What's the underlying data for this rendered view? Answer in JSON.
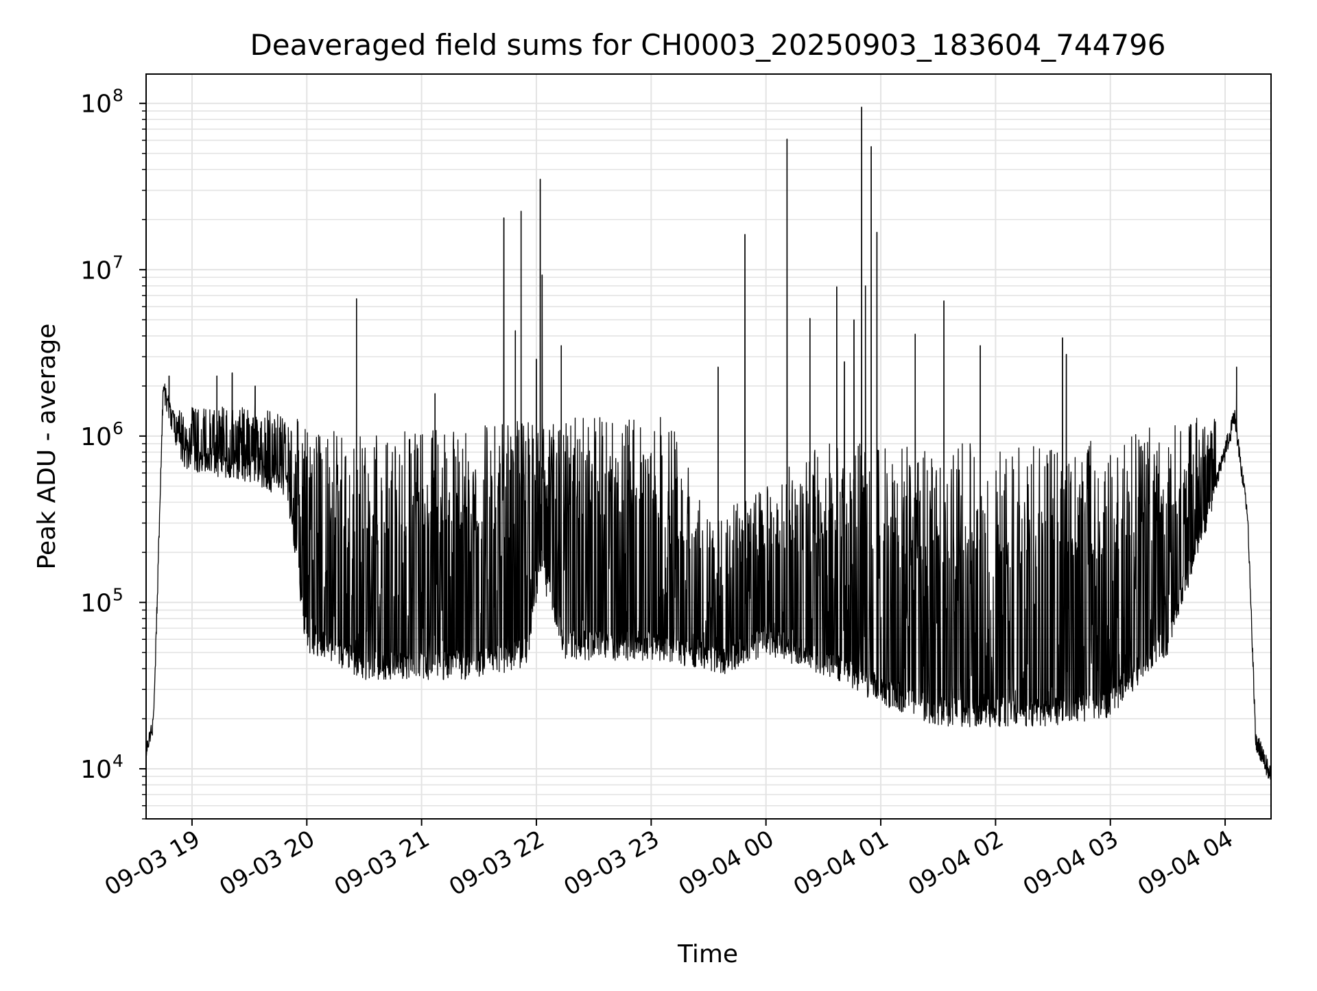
{
  "chart_data": {
    "type": "line",
    "title": "Deaveraged field sums for CH0003_20250903_183604_744796",
    "xlabel": "Time",
    "ylabel": "Peak ADU - average",
    "yscale": "log",
    "ylim": [
      5000,
      150000000
    ],
    "xlim": [
      "2025-09-03 18:36",
      "2025-09-04 04:24"
    ],
    "grid": true,
    "x_ticks": [
      "09-03 19",
      "09-03 20",
      "09-03 21",
      "09-03 22",
      "09-03 23",
      "09-04 00",
      "09-04 01",
      "09-04 02",
      "09-04 03",
      "09-04 04"
    ],
    "y_ticks": [
      {
        "base": "10",
        "exp": "4"
      },
      {
        "base": "10",
        "exp": "5"
      },
      {
        "base": "10",
        "exp": "6"
      },
      {
        "base": "10",
        "exp": "7"
      },
      {
        "base": "10",
        "exp": "8"
      }
    ],
    "line_color": "#000000",
    "baseline": [
      {
        "x": "2025-09-03 18:36",
        "y": 12000
      },
      {
        "x": "2025-09-03 18:40",
        "y": 20000
      },
      {
        "x": "2025-09-03 18:45",
        "y": 2000000
      },
      {
        "x": "2025-09-03 18:55",
        "y": 800000
      },
      {
        "x": "2025-09-03 19:10",
        "y": 700000
      },
      {
        "x": "2025-09-03 19:30",
        "y": 650000
      },
      {
        "x": "2025-09-03 19:50",
        "y": 500000
      },
      {
        "x": "2025-09-03 20:00",
        "y": 60000
      },
      {
        "x": "2025-09-03 20:30",
        "y": 42000
      },
      {
        "x": "2025-09-03 21:30",
        "y": 42000
      },
      {
        "x": "2025-09-03 21:55",
        "y": 50000
      },
      {
        "x": "2025-09-03 22:02",
        "y": 180000
      },
      {
        "x": "2025-09-03 22:15",
        "y": 55000
      },
      {
        "x": "2025-09-03 23:00",
        "y": 55000
      },
      {
        "x": "2025-09-03 23:40",
        "y": 45000
      },
      {
        "x": "2025-09-04 00:00",
        "y": 60000
      },
      {
        "x": "2025-09-04 00:30",
        "y": 45000
      },
      {
        "x": "2025-09-04 01:00",
        "y": 30000
      },
      {
        "x": "2025-09-04 01:30",
        "y": 22000
      },
      {
        "x": "2025-09-04 02:30",
        "y": 22000
      },
      {
        "x": "2025-09-04 03:00",
        "y": 25000
      },
      {
        "x": "2025-09-04 03:30",
        "y": 60000
      },
      {
        "x": "2025-09-04 03:55",
        "y": 500000
      },
      {
        "x": "2025-09-04 04:05",
        "y": 1300000
      },
      {
        "x": "2025-09-04 04:12",
        "y": 300000
      },
      {
        "x": "2025-09-04 04:16",
        "y": 15000
      },
      {
        "x": "2025-09-04 04:24",
        "y": 9000
      }
    ],
    "envelope": [
      {
        "x": "2025-09-03 18:45",
        "y": 1500000
      },
      {
        "x": "2025-09-03 19:30",
        "y": 1500000
      },
      {
        "x": "2025-09-03 19:55",
        "y": 1300000
      },
      {
        "x": "2025-09-03 20:30",
        "y": 1000000
      },
      {
        "x": "2025-09-03 21:30",
        "y": 1200000
      },
      {
        "x": "2025-09-03 22:00",
        "y": 1300000
      },
      {
        "x": "2025-09-03 23:10",
        "y": 1300000
      },
      {
        "x": "2025-09-03 23:30",
        "y": 300000
      },
      {
        "x": "2025-09-03 23:55",
        "y": 500000
      },
      {
        "x": "2025-09-04 00:30",
        "y": 900000
      },
      {
        "x": "2025-09-04 02:40",
        "y": 900000
      },
      {
        "x": "2025-09-04 03:30",
        "y": 1200000
      },
      {
        "x": "2025-09-04 03:55",
        "y": 1400000
      }
    ],
    "spikes": [
      {
        "x": "2025-09-03 18:48",
        "y": 2300000
      },
      {
        "x": "2025-09-03 19:13",
        "y": 2300000
      },
      {
        "x": "2025-09-03 19:21",
        "y": 2400000
      },
      {
        "x": "2025-09-03 19:33",
        "y": 2000000
      },
      {
        "x": "2025-09-03 20:26",
        "y": 6700000
      },
      {
        "x": "2025-09-03 21:07",
        "y": 1800000
      },
      {
        "x": "2025-09-03 21:43",
        "y": 20500000
      },
      {
        "x": "2025-09-03 21:49",
        "y": 4300000
      },
      {
        "x": "2025-09-03 21:52",
        "y": 22500000
      },
      {
        "x": "2025-09-03 22:00",
        "y": 2900000
      },
      {
        "x": "2025-09-03 22:02",
        "y": 35000000
      },
      {
        "x": "2025-09-03 22:03",
        "y": 9300000
      },
      {
        "x": "2025-09-03 22:13",
        "y": 3500000
      },
      {
        "x": "2025-09-03 23:35",
        "y": 2600000
      },
      {
        "x": "2025-09-03 23:49",
        "y": 16300000
      },
      {
        "x": "2025-09-04 00:11",
        "y": 61000000
      },
      {
        "x": "2025-09-04 00:23",
        "y": 5100000
      },
      {
        "x": "2025-09-04 00:37",
        "y": 7900000
      },
      {
        "x": "2025-09-04 00:41",
        "y": 2800000
      },
      {
        "x": "2025-09-04 00:46",
        "y": 5000000
      },
      {
        "x": "2025-09-04 00:50",
        "y": 95000000
      },
      {
        "x": "2025-09-04 00:52",
        "y": 8000000
      },
      {
        "x": "2025-09-04 00:55",
        "y": 55000000
      },
      {
        "x": "2025-09-04 00:58",
        "y": 16800000
      },
      {
        "x": "2025-09-04 01:18",
        "y": 4100000
      },
      {
        "x": "2025-09-04 01:33",
        "y": 6500000
      },
      {
        "x": "2025-09-04 01:52",
        "y": 3500000
      },
      {
        "x": "2025-09-04 02:35",
        "y": 3900000
      },
      {
        "x": "2025-09-04 02:37",
        "y": 3100000
      },
      {
        "x": "2025-09-04 04:06",
        "y": 2600000
      }
    ]
  }
}
